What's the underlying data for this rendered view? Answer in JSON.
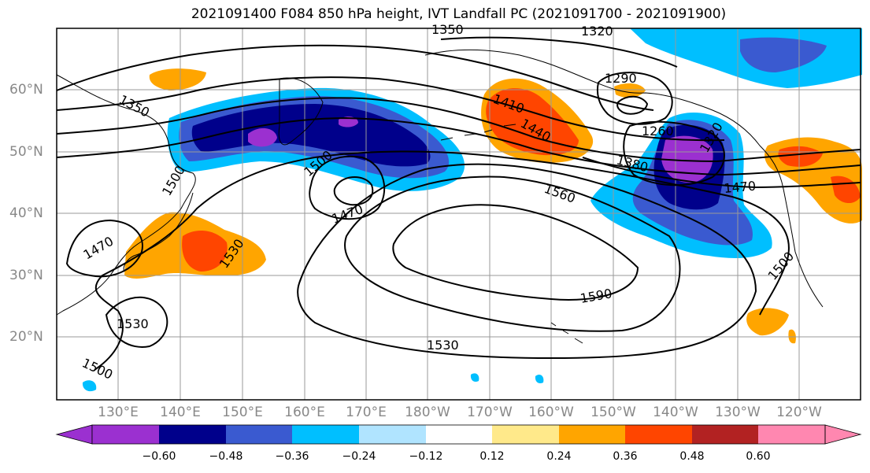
{
  "title": "2021091400 F084 850 hPa height, IVT Landfall PC (2021091700 - 2021091900)",
  "longitude_labels": [
    "130°E",
    "140°E",
    "150°E",
    "160°E",
    "170°E",
    "180°W",
    "170°W",
    "160°W",
    "150°W",
    "140°W",
    "130°W",
    "120°W"
  ],
  "latitude_labels": [
    "60°N",
    "50°N",
    "40°N",
    "30°N",
    "20°N"
  ],
  "contour_labels": [
    "1350",
    "1320",
    "1350",
    "1290",
    "1410",
    "1440",
    "1260",
    "1320",
    "1380",
    "1500",
    "1560",
    "1470",
    "1500",
    "1470",
    "1530",
    "1470",
    "1590",
    "1500",
    "1530",
    "1530",
    "1500"
  ],
  "colorbar": {
    "ticks": [
      "−0.60",
      "−0.48",
      "−0.36",
      "−0.24",
      "−0.12",
      "0.12",
      "0.24",
      "0.36",
      "0.48",
      "0.60"
    ],
    "colors": [
      "#9b30d0",
      "#00008b",
      "#3a5ad0",
      "#00bfff",
      "#b0e4ff",
      "#ffffff",
      "#ffe98a",
      "#ffa500",
      "#ff4500",
      "#b22222",
      "#ff87b0"
    ]
  }
}
